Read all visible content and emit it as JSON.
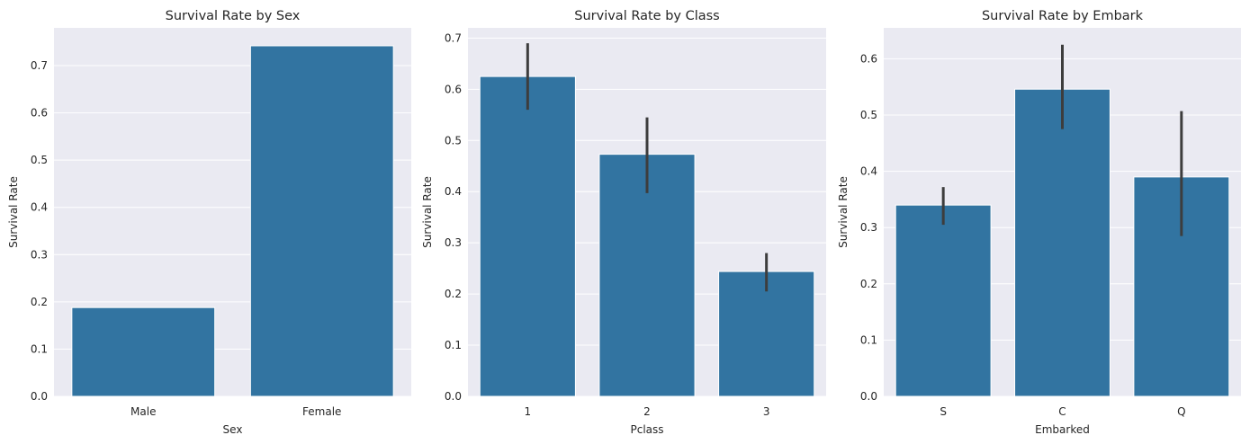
{
  "theme": {
    "background": "#ffffff",
    "axes_facecolor": "#eaeaf2",
    "grid_color": "#ffffff",
    "bar_color": "#3274a1",
    "errorbar_color": "#3d3d3d",
    "text_color": "#262626"
  },
  "chart_data": [
    {
      "type": "bar",
      "title": "Survival Rate by Sex",
      "xlabel": "Sex",
      "ylabel": "Survival Rate",
      "categories": [
        "Male",
        "Female"
      ],
      "values": [
        0.188,
        0.742
      ],
      "error_low": [
        null,
        null
      ],
      "error_high": [
        null,
        null
      ],
      "ylim": [
        0,
        0.78
      ],
      "yticks": [
        0.0,
        0.1,
        0.2,
        0.3,
        0.4,
        0.5,
        0.6,
        0.7
      ],
      "ytick_labels": [
        "0.0",
        "0.1",
        "0.2",
        "0.3",
        "0.4",
        "0.5",
        "0.6",
        "0.7"
      ],
      "grid": true,
      "legend": "none"
    },
    {
      "type": "bar",
      "title": "Survival Rate by Class",
      "xlabel": "Pclass",
      "ylabel": "Survival Rate",
      "categories": [
        "1",
        "2",
        "3"
      ],
      "values": [
        0.625,
        0.473,
        0.244
      ],
      "error_low": [
        0.56,
        0.397,
        0.205
      ],
      "error_high": [
        0.69,
        0.545,
        0.28
      ],
      "ylim": [
        0,
        0.72
      ],
      "yticks": [
        0.0,
        0.1,
        0.2,
        0.3,
        0.4,
        0.5,
        0.6,
        0.7
      ],
      "ytick_labels": [
        "0.0",
        "0.1",
        "0.2",
        "0.3",
        "0.4",
        "0.5",
        "0.6",
        "0.7"
      ],
      "grid": true,
      "legend": "none"
    },
    {
      "type": "bar",
      "title": "Survival Rate by Embark",
      "xlabel": "Embarked",
      "ylabel": "Survival Rate",
      "categories": [
        "S",
        "C",
        "Q"
      ],
      "values": [
        0.34,
        0.546,
        0.39
      ],
      "error_low": [
        0.305,
        0.475,
        0.285
      ],
      "error_high": [
        0.372,
        0.625,
        0.507
      ],
      "ylim": [
        0,
        0.655
      ],
      "yticks": [
        0.0,
        0.1,
        0.2,
        0.3,
        0.4,
        0.5,
        0.6
      ],
      "ytick_labels": [
        "0.0",
        "0.1",
        "0.2",
        "0.3",
        "0.4",
        "0.5",
        "0.6"
      ],
      "grid": true,
      "legend": "none"
    }
  ]
}
